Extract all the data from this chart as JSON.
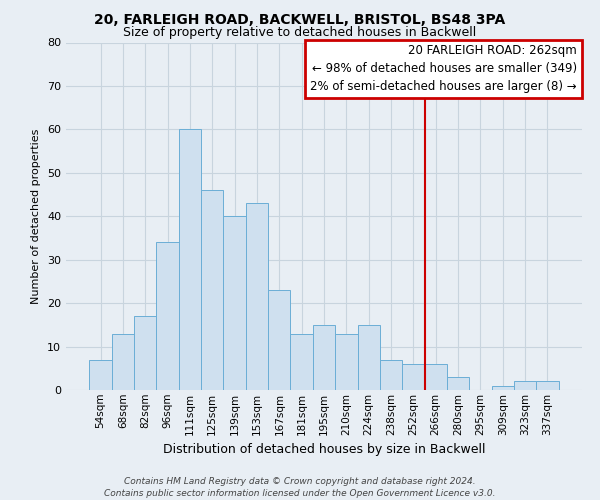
{
  "title1": "20, FARLEIGH ROAD, BACKWELL, BRISTOL, BS48 3PA",
  "title2": "Size of property relative to detached houses in Backwell",
  "xlabel": "Distribution of detached houses by size in Backwell",
  "ylabel": "Number of detached properties",
  "bin_labels": [
    "54sqm",
    "68sqm",
    "82sqm",
    "96sqm",
    "111sqm",
    "125sqm",
    "139sqm",
    "153sqm",
    "167sqm",
    "181sqm",
    "195sqm",
    "210sqm",
    "224sqm",
    "238sqm",
    "252sqm",
    "266sqm",
    "280sqm",
    "295sqm",
    "309sqm",
    "323sqm",
    "337sqm"
  ],
  "bar_heights": [
    7,
    13,
    17,
    34,
    60,
    46,
    40,
    43,
    23,
    13,
    15,
    13,
    15,
    7,
    6,
    6,
    3,
    0,
    1,
    2,
    2
  ],
  "bar_color": "#cfe0ef",
  "bar_edge_color": "#6baed6",
  "vline_index": 15,
  "vline_color": "#cc0000",
  "ylim": [
    0,
    80
  ],
  "yticks": [
    0,
    10,
    20,
    30,
    40,
    50,
    60,
    70,
    80
  ],
  "legend_title": "20 FARLEIGH ROAD: 262sqm",
  "legend_line1": "← 98% of detached houses are smaller (349)",
  "legend_line2": "2% of semi-detached houses are larger (8) →",
  "legend_box_color": "#cc0000",
  "footer1": "Contains HM Land Registry data © Crown copyright and database right 2024.",
  "footer2": "Contains public sector information licensed under the Open Government Licence v3.0.",
  "bg_color": "#e8eef4",
  "plot_bg_color": "#e8eef4",
  "grid_color": "#c8d4de",
  "title_fontsize": 10,
  "subtitle_fontsize": 9,
  "xlabel_fontsize": 9,
  "ylabel_fontsize": 8,
  "tick_fontsize": 7.5,
  "legend_fontsize": 8.5,
  "footer_fontsize": 6.5
}
